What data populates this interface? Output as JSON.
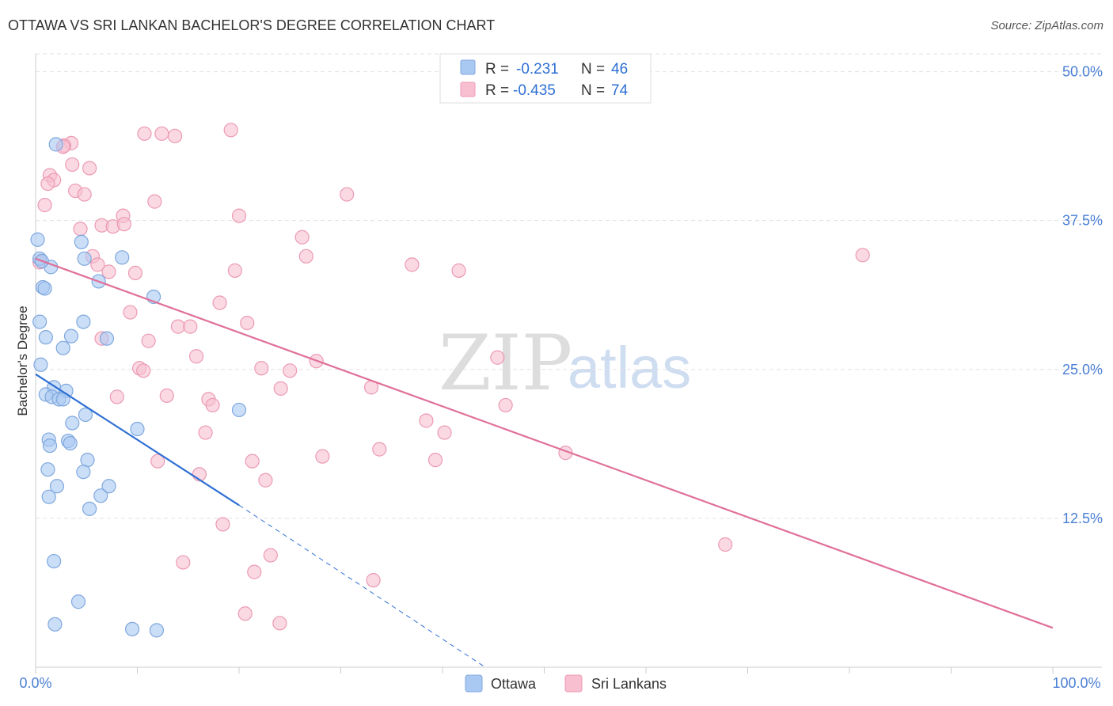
{
  "title": "OTTAWA VS SRI LANKAN BACHELOR'S DEGREE CORRELATION CHART",
  "source": "Source: ZipAtlas.com",
  "watermark": {
    "part1": "ZIP",
    "part2": "atlas"
  },
  "colors": {
    "ottawa_fill": "#a9c8f2",
    "ottawa_stroke": "#7fa8de",
    "ottawa_line": "#2e6fd3",
    "srilankan_fill": "#f7bfd0",
    "srilankan_stroke": "#ec9ab4",
    "srilankan_line": "#e0709a",
    "tick_label": "#4a7fd4",
    "grid": "#e2e2e2"
  },
  "stats": [
    {
      "r_label": "R =",
      "r_value": "-0.231",
      "n_label": "N =",
      "n_value": "46"
    },
    {
      "r_label": "R =",
      "r_value": "-0.435",
      "n_label": "N =",
      "n_value": "74"
    }
  ],
  "chart_data": {
    "type": "scatter",
    "title": "OTTAWA VS SRI LANKAN BACHELOR'S DEGREE CORRELATION CHART",
    "xlabel": "",
    "ylabel": "Bachelor's Degree",
    "xlim": [
      0,
      100
    ],
    "ylim": [
      0,
      51.5
    ],
    "x_tick_labels": [
      "0.0%",
      "100.0%"
    ],
    "y_ticks": [
      12.5,
      25.0,
      37.5,
      50.0
    ],
    "y_tick_labels": [
      "12.5%",
      "25.0%",
      "37.5%",
      "50.0%"
    ],
    "grid": true,
    "legend_position": "bottom-center",
    "series": [
      {
        "name": "Ottawa",
        "color": "#a9c8f2",
        "trend": {
          "x": [
            0,
            20
          ],
          "y": [
            24.6,
            13.6
          ]
        },
        "trend_extension": {
          "x": [
            20,
            44.2
          ],
          "y": [
            13.6,
            0
          ]
        },
        "points": [
          {
            "x": 2.0,
            "y": 43.9
          },
          {
            "x": 0.2,
            "y": 35.9
          },
          {
            "x": 4.5,
            "y": 35.7
          },
          {
            "x": 0.4,
            "y": 34.3
          },
          {
            "x": 4.8,
            "y": 34.3
          },
          {
            "x": 8.5,
            "y": 34.4
          },
          {
            "x": 1.5,
            "y": 33.6
          },
          {
            "x": 6.2,
            "y": 32.4
          },
          {
            "x": 0.7,
            "y": 31.9
          },
          {
            "x": 11.6,
            "y": 31.1
          },
          {
            "x": 0.4,
            "y": 29.0
          },
          {
            "x": 4.7,
            "y": 29.0
          },
          {
            "x": 1.0,
            "y": 27.7
          },
          {
            "x": 3.5,
            "y": 27.8
          },
          {
            "x": 7.0,
            "y": 27.6
          },
          {
            "x": 2.7,
            "y": 26.8
          },
          {
            "x": 0.5,
            "y": 25.4
          },
          {
            "x": 1.8,
            "y": 23.5
          },
          {
            "x": 3.0,
            "y": 23.2
          },
          {
            "x": 1.0,
            "y": 22.9
          },
          {
            "x": 1.6,
            "y": 22.7
          },
          {
            "x": 2.3,
            "y": 22.5
          },
          {
            "x": 2.7,
            "y": 22.5
          },
          {
            "x": 20.0,
            "y": 21.6
          },
          {
            "x": 4.9,
            "y": 21.2
          },
          {
            "x": 3.6,
            "y": 20.5
          },
          {
            "x": 10.0,
            "y": 20.0
          },
          {
            "x": 1.3,
            "y": 19.1
          },
          {
            "x": 3.2,
            "y": 19.0
          },
          {
            "x": 3.4,
            "y": 18.8
          },
          {
            "x": 1.4,
            "y": 18.6
          },
          {
            "x": 5.1,
            "y": 17.4
          },
          {
            "x": 1.2,
            "y": 16.6
          },
          {
            "x": 4.7,
            "y": 16.4
          },
          {
            "x": 2.1,
            "y": 15.2
          },
          {
            "x": 7.2,
            "y": 15.2
          },
          {
            "x": 6.4,
            "y": 14.4
          },
          {
            "x": 1.3,
            "y": 14.3
          },
          {
            "x": 5.3,
            "y": 13.3
          },
          {
            "x": 1.8,
            "y": 8.9
          },
          {
            "x": 4.2,
            "y": 5.5
          },
          {
            "x": 1.9,
            "y": 3.6
          },
          {
            "x": 9.5,
            "y": 3.2
          },
          {
            "x": 11.9,
            "y": 3.1
          },
          {
            "x": 0.6,
            "y": 34.1
          },
          {
            "x": 0.9,
            "y": 31.8
          }
        ]
      },
      {
        "name": "Sri Lankans",
        "color": "#f7bfd0",
        "trend": {
          "x": [
            0,
            100
          ],
          "y": [
            34.3,
            3.3
          ]
        },
        "points": [
          {
            "x": 3.5,
            "y": 44.0
          },
          {
            "x": 2.8,
            "y": 43.8
          },
          {
            "x": 10.7,
            "y": 44.8
          },
          {
            "x": 12.4,
            "y": 44.8
          },
          {
            "x": 13.7,
            "y": 44.6
          },
          {
            "x": 19.2,
            "y": 45.1
          },
          {
            "x": 3.6,
            "y": 42.2
          },
          {
            "x": 5.3,
            "y": 41.9
          },
          {
            "x": 1.4,
            "y": 41.3
          },
          {
            "x": 1.8,
            "y": 40.9
          },
          {
            "x": 1.2,
            "y": 40.6
          },
          {
            "x": 3.9,
            "y": 40.0
          },
          {
            "x": 4.8,
            "y": 39.7
          },
          {
            "x": 11.7,
            "y": 39.1
          },
          {
            "x": 30.6,
            "y": 39.7
          },
          {
            "x": 0.9,
            "y": 38.8
          },
          {
            "x": 8.6,
            "y": 37.9
          },
          {
            "x": 20.0,
            "y": 37.9
          },
          {
            "x": 6.5,
            "y": 37.1
          },
          {
            "x": 7.6,
            "y": 37.0
          },
          {
            "x": 8.7,
            "y": 37.2
          },
          {
            "x": 4.4,
            "y": 36.8
          },
          {
            "x": 26.2,
            "y": 36.1
          },
          {
            "x": 5.6,
            "y": 34.5
          },
          {
            "x": 26.6,
            "y": 34.5
          },
          {
            "x": 6.1,
            "y": 33.8
          },
          {
            "x": 37.0,
            "y": 33.8
          },
          {
            "x": 7.2,
            "y": 33.2
          },
          {
            "x": 9.8,
            "y": 33.1
          },
          {
            "x": 19.6,
            "y": 33.3
          },
          {
            "x": 41.6,
            "y": 33.3
          },
          {
            "x": 81.3,
            "y": 34.6
          },
          {
            "x": 0.4,
            "y": 34.0
          },
          {
            "x": 18.1,
            "y": 30.6
          },
          {
            "x": 9.3,
            "y": 29.8
          },
          {
            "x": 20.8,
            "y": 28.9
          },
          {
            "x": 14.0,
            "y": 28.6
          },
          {
            "x": 15.2,
            "y": 28.6
          },
          {
            "x": 6.5,
            "y": 27.6
          },
          {
            "x": 11.1,
            "y": 27.4
          },
          {
            "x": 15.8,
            "y": 26.1
          },
          {
            "x": 27.6,
            "y": 25.7
          },
          {
            "x": 45.4,
            "y": 26.0
          },
          {
            "x": 10.2,
            "y": 25.1
          },
          {
            "x": 10.6,
            "y": 24.9
          },
          {
            "x": 22.2,
            "y": 25.1
          },
          {
            "x": 25.0,
            "y": 24.9
          },
          {
            "x": 24.1,
            "y": 23.4
          },
          {
            "x": 33.0,
            "y": 23.5
          },
          {
            "x": 8.0,
            "y": 22.7
          },
          {
            "x": 12.9,
            "y": 22.8
          },
          {
            "x": 17.0,
            "y": 22.5
          },
          {
            "x": 17.4,
            "y": 22.0
          },
          {
            "x": 46.2,
            "y": 22.0
          },
          {
            "x": 38.4,
            "y": 20.7
          },
          {
            "x": 40.2,
            "y": 19.7
          },
          {
            "x": 16.7,
            "y": 19.7
          },
          {
            "x": 33.8,
            "y": 18.3
          },
          {
            "x": 52.1,
            "y": 18.0
          },
          {
            "x": 28.2,
            "y": 17.7
          },
          {
            "x": 12.0,
            "y": 17.3
          },
          {
            "x": 21.3,
            "y": 17.3
          },
          {
            "x": 39.3,
            "y": 17.4
          },
          {
            "x": 16.1,
            "y": 16.2
          },
          {
            "x": 22.6,
            "y": 15.7
          },
          {
            "x": 18.4,
            "y": 12.0
          },
          {
            "x": 67.8,
            "y": 10.3
          },
          {
            "x": 23.1,
            "y": 9.4
          },
          {
            "x": 14.5,
            "y": 8.8
          },
          {
            "x": 21.5,
            "y": 8.0
          },
          {
            "x": 33.2,
            "y": 7.3
          },
          {
            "x": 20.6,
            "y": 4.5
          },
          {
            "x": 24.0,
            "y": 3.7
          },
          {
            "x": 2.7,
            "y": 43.7
          }
        ]
      }
    ]
  }
}
